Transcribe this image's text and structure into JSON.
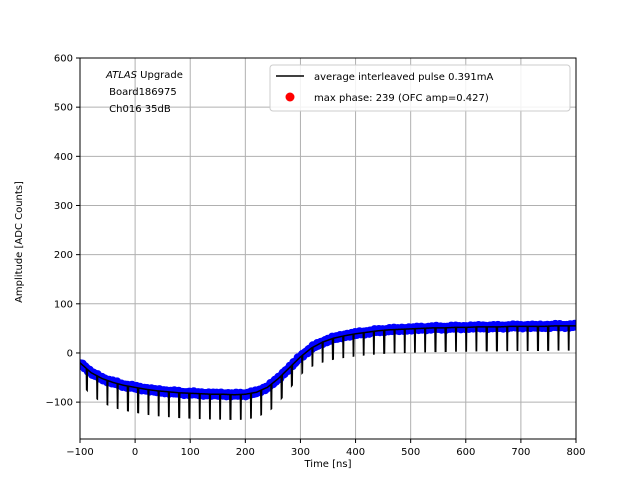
{
  "chart_data": {
    "type": "line",
    "title": "",
    "xlabel": "Time [ns]",
    "ylabel": "Amplitude [ADC Counts]",
    "xlim": [
      -100,
      800
    ],
    "ylim": [
      -175,
      600
    ],
    "x_ticks": [
      -100,
      0,
      100,
      200,
      300,
      400,
      500,
      600,
      700,
      800
    ],
    "x_tick_labels": [
      "−100",
      "0",
      "100",
      "200",
      "300",
      "400",
      "500",
      "600",
      "700",
      "800"
    ],
    "y_ticks": [
      -100,
      0,
      100,
      200,
      300,
      400,
      500,
      600
    ],
    "y_tick_labels": [
      "−100",
      "0",
      "100",
      "200",
      "300",
      "400",
      "500",
      "600"
    ],
    "grid": true,
    "legend_position": "top-right",
    "annotation": {
      "line1_italic": "ATLAS",
      "line1_rest": " Upgrade",
      "line2": " Board186975",
      "line3": " Ch016 35dB"
    },
    "series": [
      {
        "name": "average interleaved pulse 0.391mA",
        "style": "line",
        "color": "#000000",
        "x": [
          -100,
          -80,
          -60,
          -40,
          -20,
          0,
          20,
          40,
          60,
          80,
          100,
          120,
          140,
          160,
          180,
          200,
          220,
          240,
          260,
          280,
          300,
          320,
          340,
          360,
          380,
          400,
          420,
          440,
          460,
          480,
          500,
          520,
          540,
          560,
          580,
          600,
          620,
          640,
          660,
          680,
          700,
          720,
          740,
          760,
          780,
          800
        ],
        "y": [
          -20,
          -40,
          -52,
          -60,
          -66,
          -70,
          -74,
          -77,
          -79,
          -81,
          -82,
          -83,
          -84,
          -84,
          -85,
          -84,
          -80,
          -70,
          -52,
          -30,
          -8,
          10,
          22,
          30,
          35,
          39,
          42,
          45,
          47,
          48,
          49,
          50,
          51,
          51,
          52,
          52,
          53,
          53,
          53,
          54,
          54,
          54,
          54,
          55,
          55,
          55
        ],
        "dip_depth": 50,
        "dip_spacing_ns": 18.6,
        "dip_start_ns": -88
      },
      {
        "name": "max phase: 239 (OFC amp=0.427)",
        "style": "markers",
        "color": "#0000ff",
        "x": [
          -100,
          -80,
          -60,
          -40,
          -20,
          0,
          20,
          40,
          60,
          80,
          100,
          120,
          140,
          160,
          180,
          200,
          220,
          240,
          260,
          280,
          300,
          320,
          340,
          360,
          380,
          400,
          420,
          440,
          460,
          480,
          500,
          520,
          540,
          560,
          580,
          600,
          620,
          640,
          660,
          680,
          700,
          720,
          740,
          760,
          780,
          800
        ],
        "y": [
          -20,
          -40,
          -52,
          -60,
          -66,
          -70,
          -74,
          -77,
          -79,
          -81,
          -82,
          -83,
          -84,
          -84,
          -85,
          -84,
          -80,
          -70,
          -52,
          -30,
          -8,
          10,
          22,
          30,
          35,
          39,
          42,
          45,
          47,
          48,
          49,
          50,
          51,
          51,
          52,
          52,
          53,
          53,
          53,
          54,
          54,
          54,
          54,
          55,
          55,
          55
        ]
      },
      {
        "name": "max phase marker",
        "style": "marker-legend",
        "color": "#ff0000"
      }
    ]
  }
}
